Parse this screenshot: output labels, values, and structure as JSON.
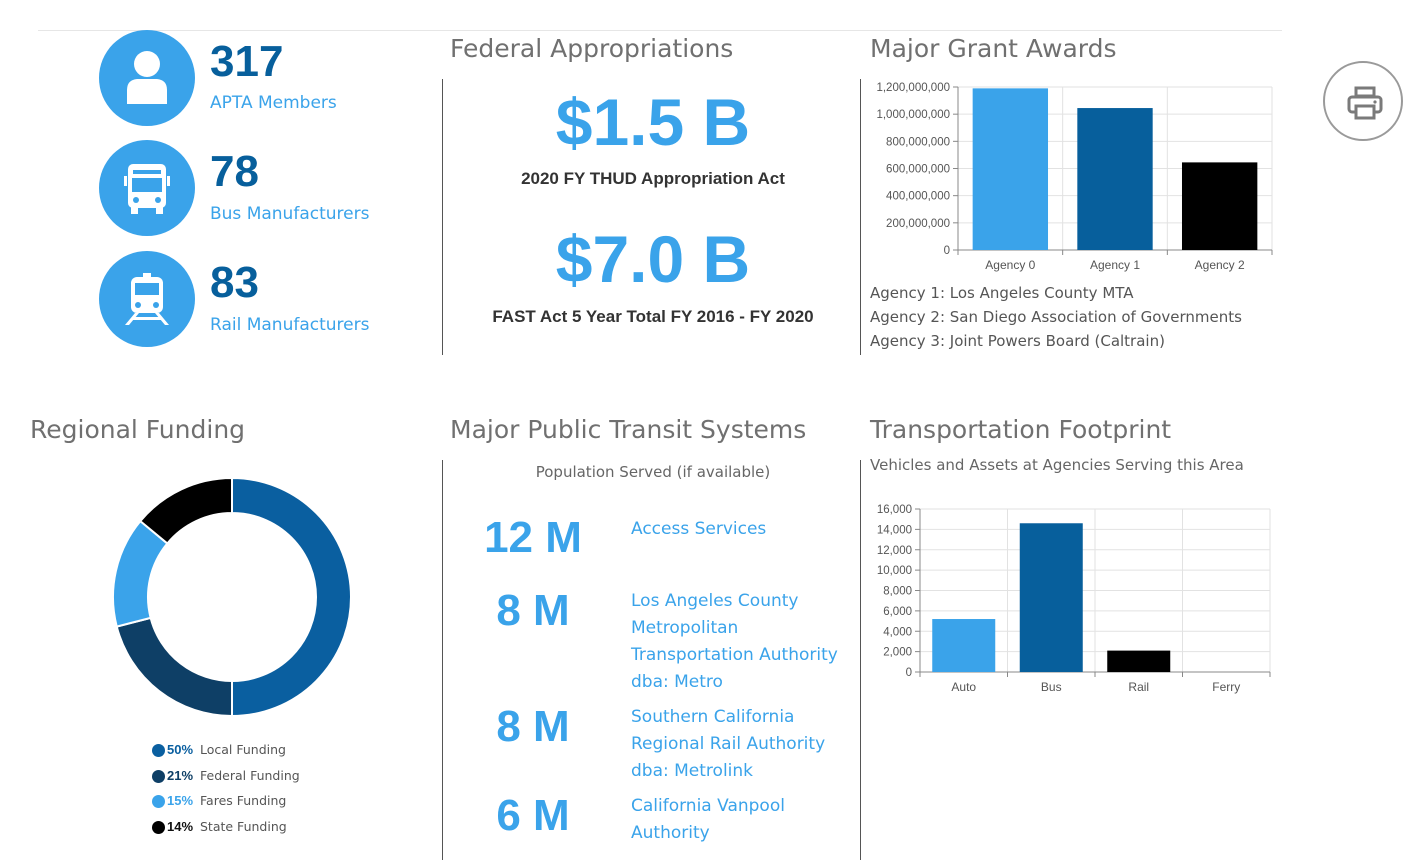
{
  "stats": [
    {
      "value": "317",
      "label": "APTA Members",
      "icon": "person-icon"
    },
    {
      "value": "78",
      "label": "Bus Manufacturers",
      "icon": "bus-icon"
    },
    {
      "value": "83",
      "label": "Rail Manufacturers",
      "icon": "train-icon"
    }
  ],
  "federal": {
    "title": "Federal Appropriations",
    "items": [
      {
        "amount": "$1.5 B",
        "caption": "2020 FY THUD Appropriation Act"
      },
      {
        "amount": "$7.0 B",
        "caption": "FAST Act 5 Year Total FY 2016 - FY 2020"
      }
    ]
  },
  "grants": {
    "title": "Major Grant Awards",
    "notes": [
      "Agency 1: Los Angeles County MTA",
      "Agency 2: San Diego Association of Governments",
      "Agency 3: Joint Powers Board (Caltrain)"
    ]
  },
  "regional": {
    "title": "Regional Funding",
    "legend": [
      {
        "pct": "50%",
        "label": "Local Funding",
        "color": "#0a5fa0"
      },
      {
        "pct": "21%",
        "label": "Federal Funding",
        "color": "#0e3f66"
      },
      {
        "pct": "15%",
        "label": "Fares Funding",
        "color": "#3aa3ea"
      },
      {
        "pct": "14%",
        "label": "State Funding",
        "color": "#000000"
      }
    ]
  },
  "transit": {
    "title": "Major Public Transit Systems",
    "subtitle": "Population Served (if available)",
    "systems": [
      {
        "population": "12 M",
        "name": "Access Services"
      },
      {
        "population": "8 M",
        "name": "Los Angeles County Metropolitan Transportation Authority dba: Metro"
      },
      {
        "population": "8 M",
        "name": "Southern California Regional Rail Authority dba: Metrolink"
      },
      {
        "population": "6 M",
        "name": "California Vanpool Authority"
      }
    ]
  },
  "footprint": {
    "title": "Transportation Footprint",
    "subtitle": "Vehicles and Assets at Agencies Serving this Area"
  },
  "print": {
    "icon": "printer-icon"
  },
  "chart_data": [
    {
      "type": "bar",
      "title": "Major Grant Awards",
      "categories": [
        "Agency 0",
        "Agency 1",
        "Agency 2"
      ],
      "values": [
        1190000000,
        1045000000,
        645000000
      ],
      "colors": [
        "#3aa3ea",
        "#075f9c",
        "#000000"
      ],
      "ylim": [
        0,
        1200000000
      ],
      "yticks": [
        "0",
        "200,000,000",
        "400,000,000",
        "600,000,000",
        "800,000,000",
        "1,000,000,000",
        "1,200,000,000"
      ],
      "grid": true
    },
    {
      "type": "pie",
      "title": "Regional Funding",
      "categories": [
        "Local Funding",
        "Federal Funding",
        "Fares Funding",
        "State Funding"
      ],
      "values": [
        50,
        21,
        15,
        14
      ],
      "colors": [
        "#0a5fa0",
        "#0e3f66",
        "#3aa3ea",
        "#000000"
      ]
    },
    {
      "type": "bar",
      "title": "Transportation Footprint",
      "categories": [
        "Auto",
        "Bus",
        "Rail",
        "Ferry"
      ],
      "values": [
        5200,
        14600,
        2100,
        0
      ],
      "colors": [
        "#3aa3ea",
        "#075f9c",
        "#000000",
        "#3aa3ea"
      ],
      "ylim": [
        0,
        16000
      ],
      "yticks": [
        "0",
        "2,000",
        "4,000",
        "6,000",
        "8,000",
        "10,000",
        "12,000",
        "14,000",
        "16,000"
      ],
      "grid": true
    }
  ]
}
